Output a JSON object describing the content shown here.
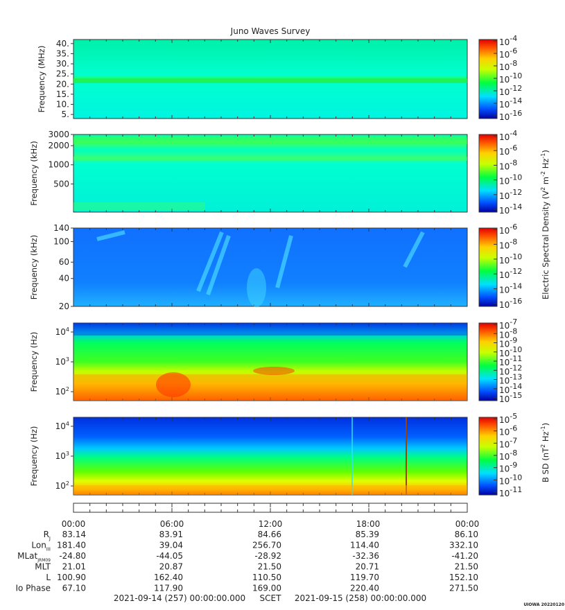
{
  "chart_data": {
    "type": "heatmap",
    "title": "Juno Waves Survey",
    "panels": [
      {
        "id": "p1",
        "ylabel": "Frequency (MHz)",
        "scale": "linear",
        "ylim": [
          3,
          42
        ],
        "yticks": [
          {
            "v": 5,
            "t": "5."
          },
          {
            "v": 10,
            "t": "10."
          },
          {
            "v": 15,
            "t": "15."
          },
          {
            "v": 20,
            "t": "20."
          },
          {
            "v": 25,
            "t": "25."
          },
          {
            "v": 30,
            "t": "30."
          },
          {
            "v": 35,
            "t": "35."
          },
          {
            "v": 40,
            "t": "40."
          }
        ],
        "colorbar": [
          "10",
          "10",
          "10",
          "10",
          "10",
          "10",
          "10"
        ],
        "colorbar_exp": [
          "-4",
          "-6",
          "-8",
          "-10",
          "-12",
          "-14",
          "-16"
        ]
      },
      {
        "id": "p2",
        "ylabel": "Frequency (kHz)",
        "scale": "log",
        "ylim": [
          180,
          3000
        ],
        "yticks": [
          {
            "v": 500,
            "t": "500"
          },
          {
            "v": 1000,
            "t": "1000"
          },
          {
            "v": 2000,
            "t": "2000"
          },
          {
            "v": 3000,
            "t": "3000"
          }
        ],
        "colorbar": [
          "10",
          "10",
          "10",
          "10",
          "10",
          "10"
        ],
        "colorbar_exp": [
          "-4",
          "-6",
          "-8",
          "-10",
          "-12",
          "-14"
        ]
      },
      {
        "id": "p3",
        "ylabel": "Frequency (kHz)",
        "scale": "log",
        "ylim": [
          20,
          140
        ],
        "yticks": [
          {
            "v": 20,
            "t": "20"
          },
          {
            "v": 40,
            "t": "40"
          },
          {
            "v": 60,
            "t": "60"
          },
          {
            "v": 100,
            "t": "100"
          },
          {
            "v": 140,
            "t": "140"
          }
        ],
        "colorbar": [
          "10",
          "10",
          "10",
          "10",
          "10",
          "10"
        ],
        "colorbar_exp": [
          "-6",
          "-8",
          "-10",
          "-12",
          "-14",
          "-16"
        ]
      },
      {
        "id": "p4",
        "ylabel": "Frequency (Hz)",
        "scale": "log",
        "ylim": [
          50,
          20000
        ],
        "yticks": [
          {
            "v": 100,
            "t": "10",
            "e": "2"
          },
          {
            "v": 1000,
            "t": "10",
            "e": "3"
          },
          {
            "v": 10000,
            "t": "10",
            "e": "4"
          }
        ],
        "colorbar": [
          "10",
          "10",
          "10",
          "10",
          "10",
          "10",
          "10",
          "10",
          "10"
        ],
        "colorbar_exp": [
          "-7",
          "-8",
          "-9",
          "-10",
          "-11",
          "-12",
          "-13",
          "-14",
          "-15"
        ]
      },
      {
        "id": "p5",
        "ylabel": "Frequency (Hz)",
        "scale": "log",
        "ylim": [
          50,
          20000
        ],
        "yticks": [
          {
            "v": 100,
            "t": "10",
            "e": "2"
          },
          {
            "v": 1000,
            "t": "10",
            "e": "3"
          },
          {
            "v": 10000,
            "t": "10",
            "e": "4"
          }
        ],
        "colorbar": [
          "10",
          "10",
          "10",
          "10",
          "10",
          "10",
          "10"
        ],
        "colorbar_exp": [
          "-5",
          "-6",
          "-7",
          "-8",
          "-9",
          "-10",
          "-11"
        ]
      }
    ],
    "colorbar_label_e": "Electric Spectral Density (V",
    "colorbar_label_e_parts": [
      "Electric Spectral Density (V",
      "2",
      " m",
      "-2",
      " Hz",
      "-1",
      ")"
    ],
    "colorbar_label_b_parts": [
      "B SD (nT",
      "2",
      " Hz",
      "-1",
      ")"
    ],
    "x_tick_labels": [
      "00:00",
      "06:00",
      "12:00",
      "18:00",
      "00:00"
    ],
    "ephemeris": [
      {
        "label": "R",
        "sub": "J",
        "values": [
          "83.14",
          "83.91",
          "84.66",
          "85.39",
          "86.10"
        ]
      },
      {
        "label": "Lon",
        "sub": "III",
        "values": [
          "181.40",
          "39.04",
          "256.70",
          "114.40",
          "332.10"
        ]
      },
      {
        "label": "MLat",
        "sub": "JRM09",
        "values": [
          "-24.80",
          "-44.05",
          "-28.92",
          "-32.36",
          "-41.20"
        ]
      },
      {
        "label": "MLT",
        "sub": "",
        "values": [
          "21.01",
          "20.87",
          "21.50",
          "20.71",
          "21.50"
        ]
      },
      {
        "label": "L",
        "sub": "",
        "values": [
          "100.90",
          "162.40",
          "110.50",
          "119.70",
          "152.10"
        ]
      },
      {
        "label": "Io Phase",
        "sub": "",
        "values": [
          "67.10",
          "117.90",
          "169.00",
          "220.40",
          "271.50"
        ]
      }
    ],
    "footer_left": "2021-09-14 (257) 00:00:00.000",
    "footer_mid": "SCET",
    "footer_right": "2021-09-15 (258) 00:00:00.000",
    "stamp": "UIOWA 20220120"
  }
}
